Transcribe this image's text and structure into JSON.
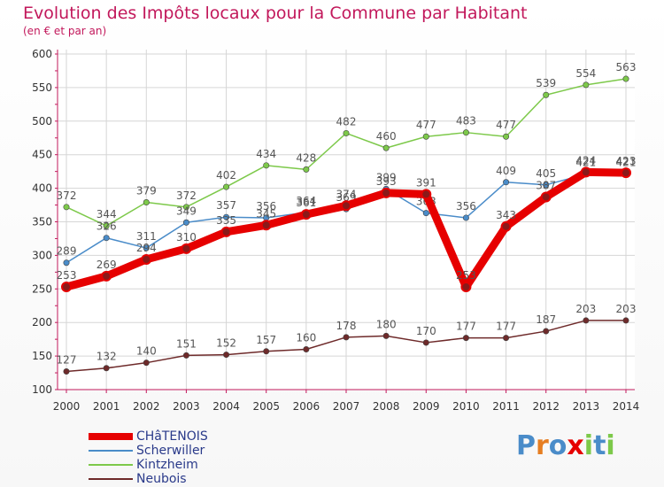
{
  "chart_data": {
    "type": "line",
    "title": "Evolution des Impôts locaux pour la Commune par Habitant",
    "subtitle": "(en € et par an)",
    "xlabel": "",
    "ylabel": "",
    "x": [
      "2000",
      "2001",
      "2002",
      "2003",
      "2004",
      "2005",
      "2006",
      "2007",
      "2008",
      "2009",
      "2010",
      "2011",
      "2012",
      "2013",
      "2014"
    ],
    "ylim": [
      100,
      600
    ],
    "yticks": [
      100,
      150,
      200,
      250,
      300,
      350,
      400,
      450,
      500,
      550,
      600
    ],
    "grid": true,
    "legend_position": "bottom-left",
    "series": [
      {
        "name": "Neubois",
        "color": "#6e2a2a",
        "values": [
          127,
          132,
          140,
          151,
          152,
          157,
          160,
          178,
          180,
          170,
          177,
          177,
          187,
          203,
          203
        ]
      },
      {
        "name": "Kintzheim",
        "color": "#7dc94a",
        "values": [
          372,
          344,
          379,
          372,
          402,
          434,
          428,
          482,
          460,
          477,
          483,
          477,
          539,
          554,
          563
        ]
      },
      {
        "name": "Scherwiller",
        "color": "#4a8cc9",
        "values": [
          289,
          326,
          311,
          349,
          357,
          356,
          364,
          369,
          399,
          363,
          356,
          409,
          405,
          421,
          421
        ]
      },
      {
        "name": "CHâTENOIS",
        "color": "#e60000",
        "values": [
          253,
          269,
          294,
          310,
          335,
          345,
          361,
          374,
          393,
          391,
          253,
          343,
          387,
          424,
          423
        ]
      }
    ],
    "legend_order": [
      "CHâTENOIS",
      "Scherwiller",
      "Kintzheim",
      "Neubois"
    ]
  },
  "logo": {
    "text": "Proxiti",
    "letters": [
      "P",
      "r",
      "o",
      "x",
      "i",
      "t",
      "i"
    ],
    "colors": [
      "#4a8cc9",
      "#e67e22",
      "#4a8cc9",
      "#e60000",
      "#7dc94a",
      "#4a8cc9",
      "#7dc94a"
    ]
  }
}
